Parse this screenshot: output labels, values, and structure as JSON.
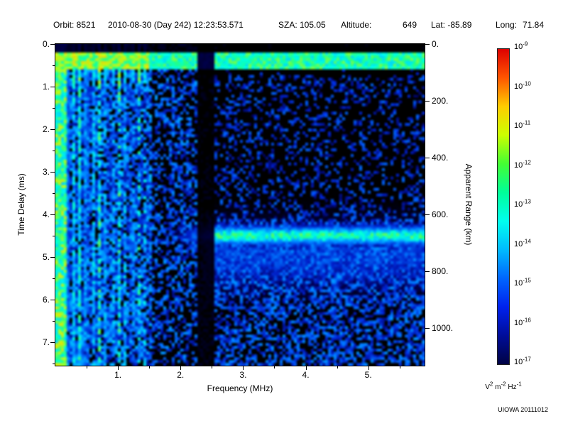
{
  "header": {
    "orbit": "Orbit: 8521",
    "datetime": "2010-08-30 (Day 242) 12:23:53.571",
    "sza": "SZA: 105.05",
    "altitude_label": "Altitude:",
    "altitude_value": "649",
    "lat": "Lat: -85.89",
    "long_label": "Long:",
    "long_value": "71.84"
  },
  "footer": {
    "credit": "UIOWA 20111012"
  },
  "chart_data": {
    "type": "heatmap",
    "title": "Orbit: 8521 2010-08-30 (Day 242) 12:23:53.571 SZA: 105.05 Altitude: 649 Lat: -85.89 Long: 71.84",
    "xlabel": "Frequency (MHz)",
    "x_range": [
      0.0,
      5.9
    ],
    "x_ticks": [
      {
        "value": 1,
        "label": "1."
      },
      {
        "value": 2,
        "label": "2."
      },
      {
        "value": 3,
        "label": "3."
      },
      {
        "value": 4,
        "label": "4."
      },
      {
        "value": 5,
        "label": "5."
      }
    ],
    "ylabel_left": "Time Delay (ms)",
    "y_range_ms": [
      0.0,
      7.55
    ],
    "y_ticks_left": [
      {
        "value": 0,
        "label": "0."
      },
      {
        "value": 1,
        "label": "1."
      },
      {
        "value": 2,
        "label": "2."
      },
      {
        "value": 3,
        "label": "3."
      },
      {
        "value": 4,
        "label": "4."
      },
      {
        "value": 5,
        "label": "5."
      },
      {
        "value": 6,
        "label": "6."
      },
      {
        "value": 7,
        "label": "7."
      }
    ],
    "ylabel_right": "Apparent Range (km)",
    "range_km_per_ms": 150,
    "y_ticks_right": [
      {
        "value": 0,
        "label": "0."
      },
      {
        "value": 200,
        "label": "200."
      },
      {
        "value": 400,
        "label": "400."
      },
      {
        "value": 600,
        "label": "600."
      },
      {
        "value": 800,
        "label": "800."
      },
      {
        "value": 1000,
        "label": "1000."
      }
    ],
    "colorbar": {
      "scale": "log",
      "max": "1e-9",
      "min": "1e-17",
      "tick_exponents": [
        -9,
        -10,
        -11,
        -12,
        -13,
        -14,
        -15,
        -16,
        -17
      ],
      "unit_parts": [
        {
          "base": "V",
          "exp": "2"
        },
        {
          "base": "m",
          "exp": "-2"
        },
        {
          "base": "Hz",
          "exp": "-1"
        }
      ],
      "gradient": [
        "#dd0000",
        "#ff5500",
        "#ffcc00",
        "#ccff00",
        "#44ff33",
        "#00ff99",
        "#00ffee",
        "#00bbff",
        "#0066ff",
        "#0022ee",
        "#000d99",
        "#000344"
      ]
    },
    "colormap_stops": [
      {
        "v": 0.0,
        "c": "#000000"
      },
      {
        "v": 0.1,
        "c": "#000055"
      },
      {
        "v": 0.22,
        "c": "#0022cc"
      },
      {
        "v": 0.38,
        "c": "#0077ff"
      },
      {
        "v": 0.5,
        "c": "#00ccff"
      },
      {
        "v": 0.58,
        "c": "#00ffdd"
      },
      {
        "v": 0.66,
        "c": "#22ff88"
      },
      {
        "v": 0.75,
        "c": "#aaff22"
      },
      {
        "v": 0.85,
        "c": "#ffcc00"
      },
      {
        "v": 1.0,
        "c": "#ff0000"
      }
    ],
    "spectrogram": {
      "seed": 1337,
      "harmonics": {
        "f_first": 0.18,
        "spacing": 0.105,
        "f_end": 1.47,
        "note": "vertical cyan-green electron plasma harmonic stripes below ~1.5 MHz, brighter near zero delay, broken/dashed toward 1.5 MHz"
      },
      "surface_band": {
        "t_start": 0.22,
        "t_end": 0.58,
        "note": "bright horizontal band across all frequencies near 0.3-0.5 ms delay"
      },
      "echo_band": {
        "t_center": 4.5,
        "t_sigma": 0.16,
        "f_start": 1.85,
        "note": "cyan-green ionospheric echo trace near 4.5 ms from ~2.4 MHz to right edge with diffuse blue halo below"
      },
      "dark_column": [
        2.28,
        2.52
      ],
      "regions_note": "diffuse blue noise left of 1.55 MHz at all delays; upper-right quadrant mostly black; blue speckle noise increases below ~4.2 ms on right side"
    }
  }
}
